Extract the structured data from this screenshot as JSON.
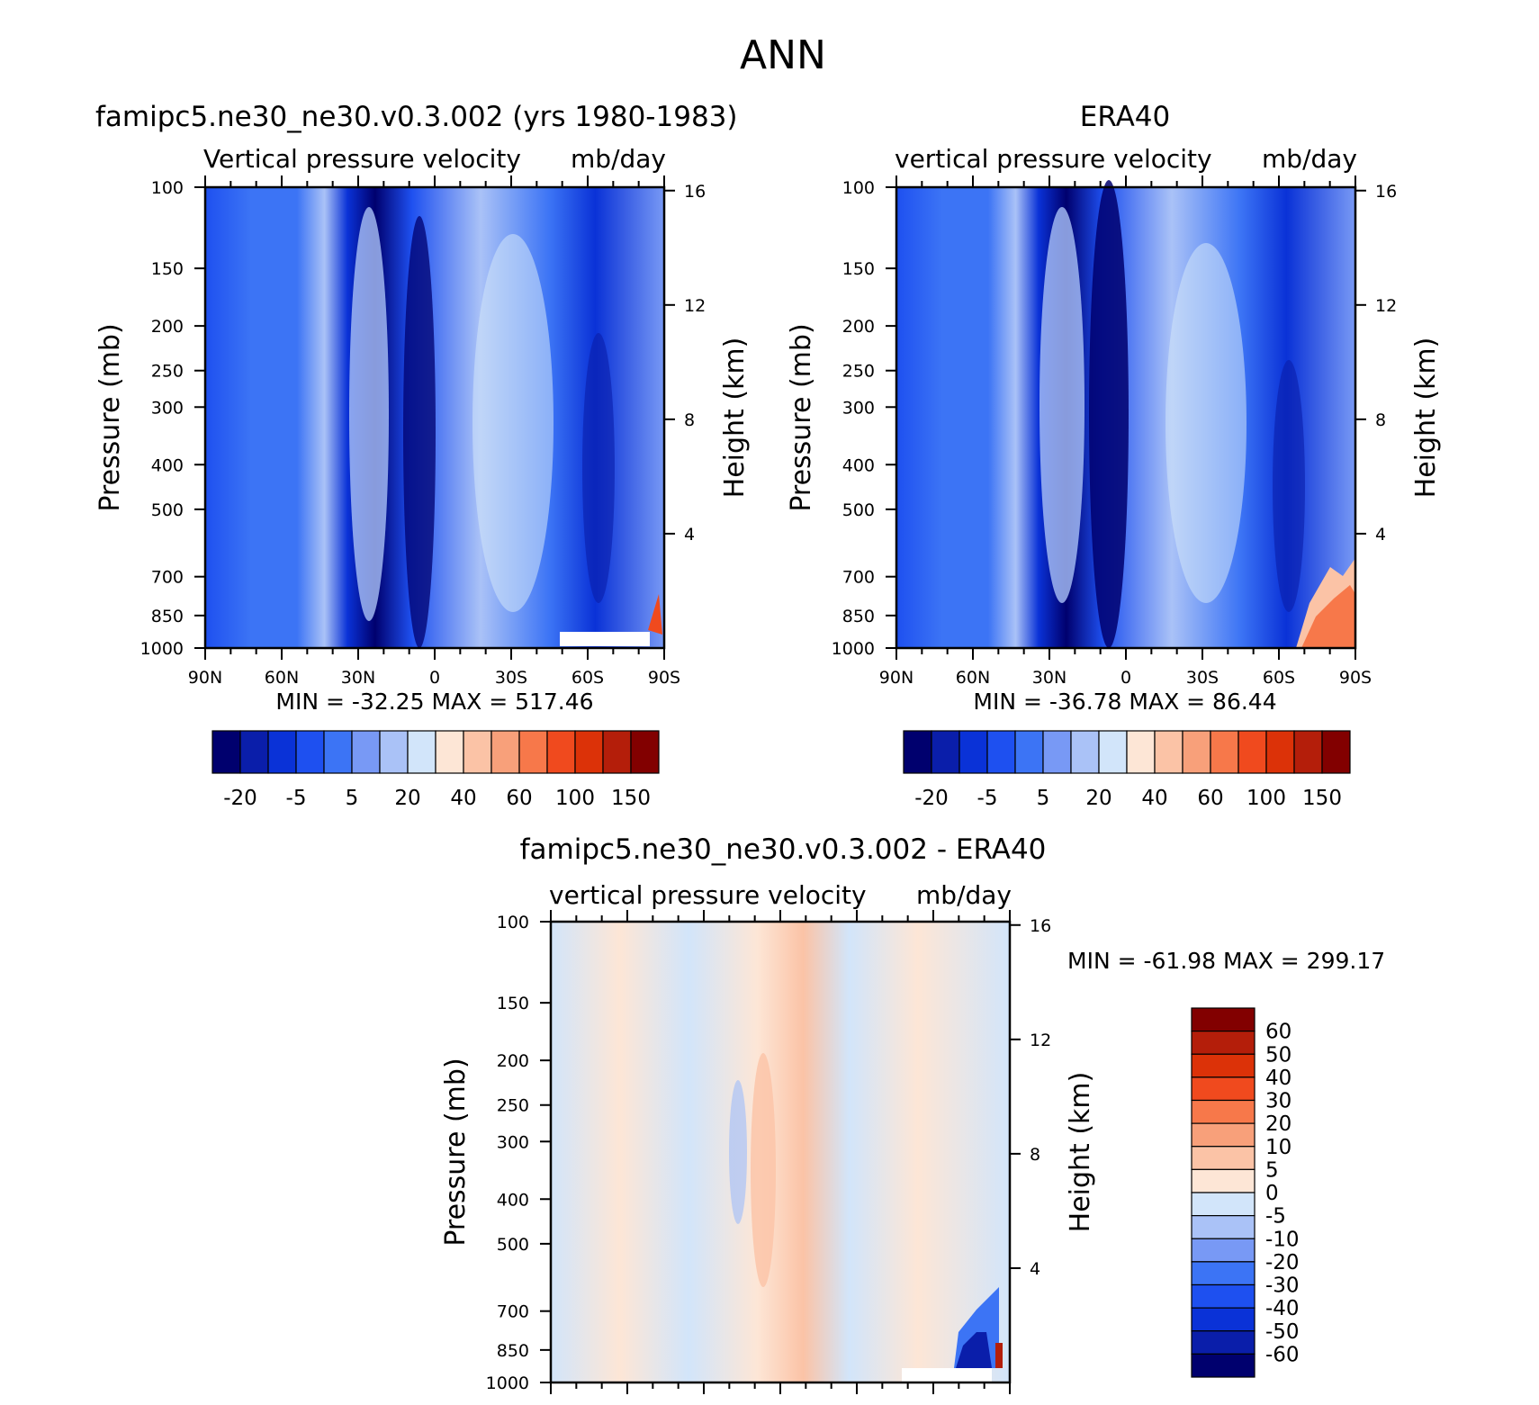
{
  "figure": {
    "title": "ANN",
    "right_axis_label": "Height (km)",
    "left_axis_label": "Pressure (mb)",
    "pressure_ticks": [
      "100",
      "150",
      "200",
      "250",
      "300",
      "400",
      "500",
      "700",
      "850",
      "1000"
    ],
    "height_ticks": [
      "16",
      "12",
      "8",
      "4"
    ],
    "lat_ticks": [
      "90N",
      "60N",
      "30N",
      "0",
      "30S",
      "60S",
      "90S"
    ]
  },
  "chart_data": [
    {
      "type": "heatmap",
      "title": "famipc5.ne30_ne30.v0.3.002 (yrs 1980-1983)",
      "subtitle_left": "Vertical pressure velocity",
      "subtitle_right": "mb/day",
      "min_max_text": "MIN = -32.25   MAX = 517.46",
      "min": -32.25,
      "max": 517.46,
      "xlabel": "",
      "ylabel": "Pressure (mb)",
      "y2label": "Height (km)",
      "x_range": [
        90,
        -90
      ],
      "y_range": [
        100,
        1000
      ],
      "y_scale": "log",
      "colorbar": {
        "orientation": "horizontal",
        "labels": [
          "-20",
          "-5",
          "5",
          "20",
          "40",
          "60",
          "100",
          "150"
        ],
        "levels": [
          -30,
          -20,
          -10,
          -5,
          0,
          5,
          10,
          20,
          30,
          40,
          50,
          60,
          80,
          100,
          125,
          150
        ]
      }
    },
    {
      "type": "heatmap",
      "title": "ERA40",
      "subtitle_left": "vertical pressure velocity",
      "subtitle_right": "mb/day",
      "min_max_text": "MIN = -36.78   MAX =  86.44",
      "min": -36.78,
      "max": 86.44,
      "xlabel": "",
      "ylabel": "Pressure (mb)",
      "y2label": "Height (km)",
      "x_range": [
        90,
        -90
      ],
      "y_range": [
        100,
        1000
      ],
      "y_scale": "log",
      "colorbar": {
        "orientation": "horizontal",
        "labels": [
          "-20",
          "-5",
          "5",
          "20",
          "40",
          "60",
          "100",
          "150"
        ],
        "levels": [
          -30,
          -20,
          -10,
          -5,
          0,
          5,
          10,
          20,
          30,
          40,
          50,
          60,
          80,
          100,
          125,
          150
        ]
      }
    },
    {
      "type": "heatmap",
      "title": "famipc5.ne30_ne30.v0.3.002 - ERA40",
      "subtitle_left": "vertical pressure velocity",
      "subtitle_right": "mb/day",
      "min_max_text": "MIN = -61.98   MAX = 299.17",
      "min": -61.98,
      "max": 299.17,
      "xlabel": "",
      "ylabel": "Pressure (mb)",
      "y2label": "Height (km)",
      "x_range": [
        90,
        -90
      ],
      "y_range": [
        100,
        1000
      ],
      "y_scale": "log",
      "colorbar": {
        "orientation": "vertical",
        "labels": [
          "60",
          "50",
          "40",
          "30",
          "20",
          "10",
          "5",
          "0",
          "-5",
          "-10",
          "-20",
          "-30",
          "-40",
          "-50",
          "-60"
        ]
      }
    }
  ],
  "colors": {
    "h16": [
      "#00006e",
      "#0a1eaa",
      "#0a32d7",
      "#1e50f0",
      "#3c74f5",
      "#7899f5",
      "#aac2f7",
      "#d2e5fa",
      "#fde6d6",
      "#fbc3a6",
      "#f8a07a",
      "#f7784a",
      "#f04a1e",
      "#dc3208",
      "#b41e0a",
      "#820000"
    ],
    "v16": [
      "#820000",
      "#b41e0a",
      "#dc3208",
      "#f04a1e",
      "#f7784a",
      "#f8a07a",
      "#fbc3a6",
      "#fde6d6",
      "#d2e5fa",
      "#aac2f7",
      "#7899f5",
      "#3c74f5",
      "#1e50f0",
      "#0a32d7",
      "#0a1eaa",
      "#00006e"
    ]
  }
}
